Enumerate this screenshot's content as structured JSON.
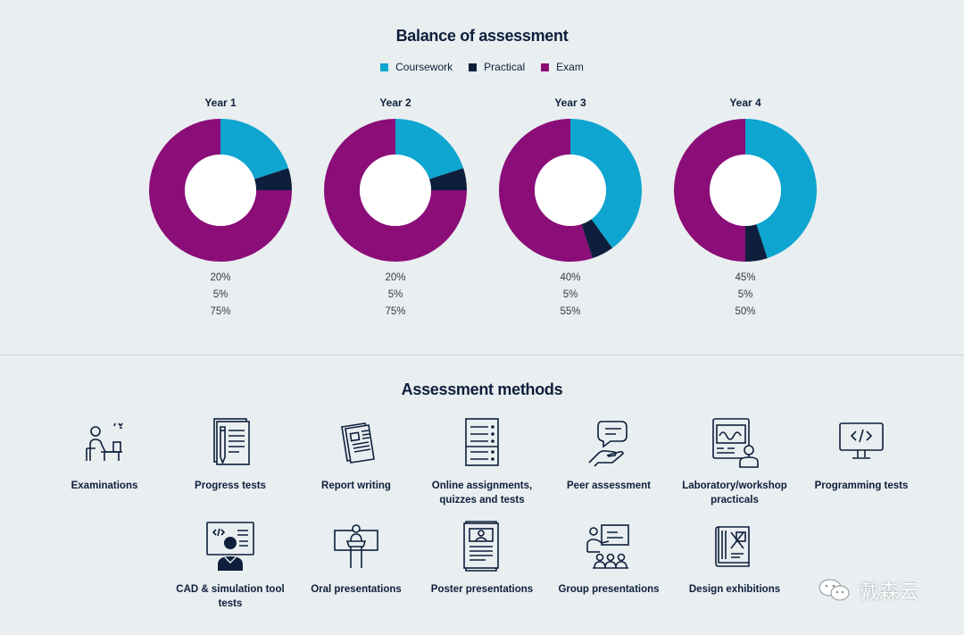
{
  "balance": {
    "title": "Balance of assessment",
    "legend": [
      {
        "label": "Coursework",
        "color": "#0ea5d0"
      },
      {
        "label": "Practical",
        "color": "#0d1f3c"
      },
      {
        "label": "Exam",
        "color": "#8b0d78"
      }
    ]
  },
  "chart_data": {
    "type": "pie",
    "variant": "donut",
    "title": "Balance of assessment",
    "series_names": [
      "Coursework",
      "Practical",
      "Exam"
    ],
    "colors": [
      "#0ea5d0",
      "#0d1f3c",
      "#8b0d78"
    ],
    "charts": [
      {
        "label": "Year 1",
        "values": [
          20,
          5,
          75
        ],
        "labels": [
          "20%",
          "5%",
          "75%"
        ]
      },
      {
        "label": "Year 2",
        "values": [
          20,
          5,
          75
        ],
        "labels": [
          "20%",
          "5%",
          "75%"
        ]
      },
      {
        "label": "Year 3",
        "values": [
          40,
          5,
          55
        ],
        "labels": [
          "40%",
          "5%",
          "55%"
        ]
      },
      {
        "label": "Year 4",
        "values": [
          45,
          5,
          50
        ],
        "labels": [
          "45%",
          "5%",
          "50%"
        ]
      }
    ]
  },
  "methods": {
    "title": "Assessment methods",
    "items": [
      {
        "label": "Examinations",
        "icon": "desk-exam-icon"
      },
      {
        "label": "Progress tests",
        "icon": "notepad-pencil-icon"
      },
      {
        "label": "Report writing",
        "icon": "report-document-icon"
      },
      {
        "label": "Online assignments, quizzes and tests",
        "icon": "checklist-icon"
      },
      {
        "label": "Peer assessment",
        "icon": "speech-hand-icon"
      },
      {
        "label": "Laboratory/workshop practicals",
        "icon": "lab-machine-icon"
      },
      {
        "label": "Programming tests",
        "icon": "code-monitor-icon"
      },
      {
        "label": "CAD & simulation tool tests",
        "icon": "cad-user-icon"
      },
      {
        "label": "Oral presentations",
        "icon": "podium-icon"
      },
      {
        "label": "Poster presentations",
        "icon": "poster-icon"
      },
      {
        "label": "Group presentations",
        "icon": "group-presenter-icon"
      },
      {
        "label": "Design exhibitions",
        "icon": "design-book-icon"
      }
    ]
  },
  "watermark": {
    "text": "戴森云"
  }
}
